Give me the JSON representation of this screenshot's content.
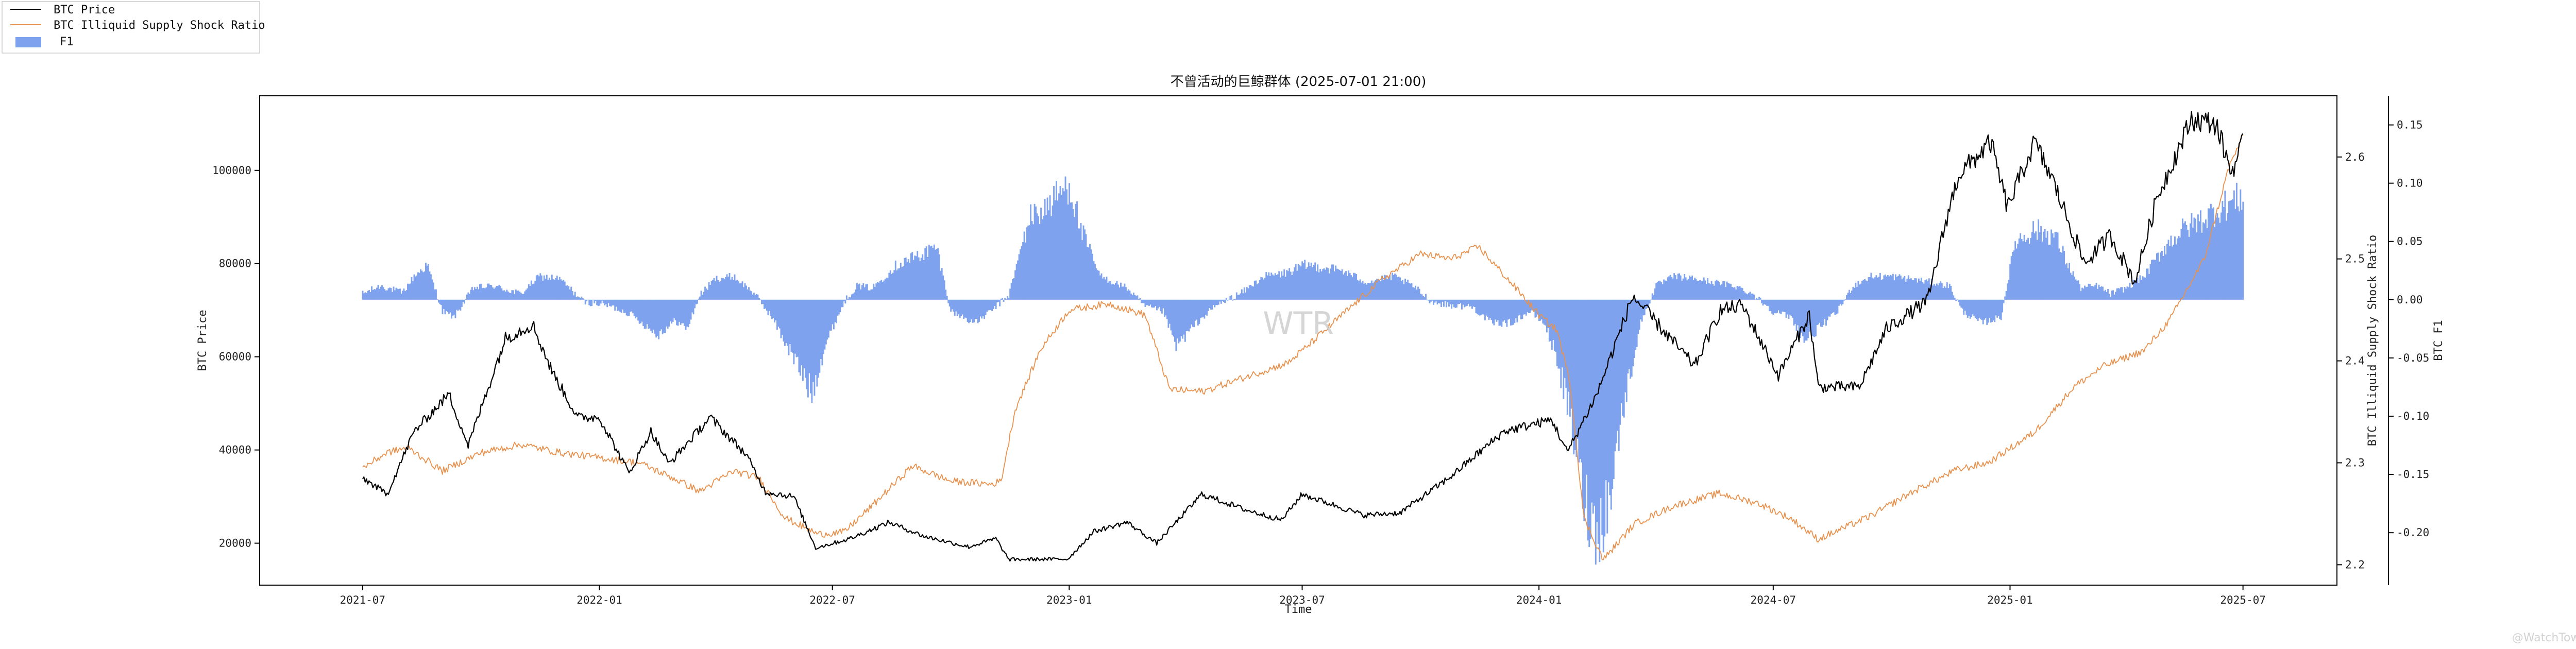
{
  "chart_data": {
    "type": "line",
    "title": "不曾活动的巨鲸群体 (2025-07-01 21:00)",
    "xlabel": "Time",
    "ylabels": {
      "left": "BTC Price",
      "right1": "BTC Illiquid Supply Shock Ratio",
      "right2": "BTC F1"
    },
    "x_ticks": [
      "2021-07",
      "2022-01",
      "2022-07",
      "2023-01",
      "2023-07",
      "2024-01",
      "2024-07",
      "2025-01",
      "2025-07"
    ],
    "x_tick_dates": [
      "2021-07-01",
      "2022-01-01",
      "2022-07-01",
      "2023-01-01",
      "2023-07-01",
      "2024-01-01",
      "2024-07-01",
      "2025-01-01",
      "2025-07-01"
    ],
    "xlim": [
      "2021-04-12",
      "2025-09-12"
    ],
    "y_left": {
      "ticks": [
        "20000",
        "40000",
        "60000",
        "80000",
        "100000"
      ],
      "tick_values": [
        20000,
        40000,
        60000,
        80000,
        100000
      ],
      "lim": [
        11000,
        116000
      ]
    },
    "y_right1": {
      "ticks": [
        "2.2",
        "2.3",
        "2.4",
        "2.5",
        "2.6"
      ],
      "tick_values": [
        2.2,
        2.3,
        2.4,
        2.5,
        2.6
      ],
      "lim": [
        2.18,
        2.66
      ]
    },
    "y_right2": {
      "ticks": [
        "-0.20",
        "-0.15",
        "-0.10",
        "-0.05",
        "0.00",
        "0.05",
        "0.10",
        "0.15"
      ],
      "tick_values": [
        -0.2,
        -0.15,
        -0.1,
        -0.05,
        0.0,
        0.05,
        0.1,
        0.15
      ],
      "lim": [
        -0.245,
        0.175
      ]
    },
    "legend_position": "top-left, outside plot",
    "watermark": "WTR",
    "corner_mark": "@WatchTower",
    "series": [
      {
        "name": "BTC Price",
        "axis": "left",
        "color": "#000000",
        "points": [
          [
            "2021-07-01",
            34000
          ],
          [
            "2021-07-20",
            30500
          ],
          [
            "2021-08-10",
            44000
          ],
          [
            "2021-09-06",
            52000
          ],
          [
            "2021-09-21",
            41000
          ],
          [
            "2021-10-20",
            64000
          ],
          [
            "2021-11-10",
            67000
          ],
          [
            "2021-11-25",
            57000
          ],
          [
            "2021-12-15",
            47000
          ],
          [
            "2022-01-01",
            47000
          ],
          [
            "2022-01-24",
            35000
          ],
          [
            "2022-02-10",
            44000
          ],
          [
            "2022-02-24",
            37000
          ],
          [
            "2022-03-28",
            47000
          ],
          [
            "2022-04-25",
            39000
          ],
          [
            "2022-05-10",
            31000
          ],
          [
            "2022-06-01",
            30000
          ],
          [
            "2022-06-18",
            19000
          ],
          [
            "2022-07-15",
            21000
          ],
          [
            "2022-08-14",
            24500
          ],
          [
            "2022-09-10",
            21500
          ],
          [
            "2022-10-15",
            19200
          ],
          [
            "2022-11-05",
            21000
          ],
          [
            "2022-11-15",
            16500
          ],
          [
            "2022-12-31",
            16600
          ],
          [
            "2023-01-20",
            22500
          ],
          [
            "2023-02-15",
            24500
          ],
          [
            "2023-03-10",
            20000
          ],
          [
            "2023-04-14",
            30500
          ],
          [
            "2023-05-20",
            27000
          ],
          [
            "2023-06-15",
            25000
          ],
          [
            "2023-07-01",
            30500
          ],
          [
            "2023-08-18",
            26000
          ],
          [
            "2023-09-15",
            26500
          ],
          [
            "2023-10-23",
            34000
          ],
          [
            "2023-12-05",
            44000
          ],
          [
            "2024-01-11",
            46500
          ],
          [
            "2024-01-23",
            39500
          ],
          [
            "2024-02-15",
            52000
          ],
          [
            "2024-03-14",
            73000
          ],
          [
            "2024-04-15",
            63000
          ],
          [
            "2024-05-01",
            58000
          ],
          [
            "2024-05-21",
            70000
          ],
          [
            "2024-06-07",
            71000
          ],
          [
            "2024-07-05",
            56000
          ],
          [
            "2024-07-29",
            69000
          ],
          [
            "2024-08-05",
            53500
          ],
          [
            "2024-09-06",
            53500
          ],
          [
            "2024-09-27",
            66000
          ],
          [
            "2024-10-29",
            72000
          ],
          [
            "2024-11-13",
            90000
          ],
          [
            "2024-11-22",
            99000
          ],
          [
            "2024-12-17",
            106000
          ],
          [
            "2024-12-30",
            92000
          ],
          [
            "2025-01-20",
            106000
          ],
          [
            "2025-02-03",
            98000
          ],
          [
            "2025-02-28",
            80000
          ],
          [
            "2025-03-20",
            86000
          ],
          [
            "2025-04-08",
            76000
          ],
          [
            "2025-04-25",
            94000
          ],
          [
            "2025-05-22",
            111000
          ],
          [
            "2025-06-10",
            110000
          ],
          [
            "2025-06-22",
            99500
          ],
          [
            "2025-07-01",
            106000
          ]
        ]
      },
      {
        "name": "BTC Illiquid Supply Shock Ratio",
        "axis": "right1",
        "color": "#e8924f",
        "points": [
          [
            "2021-07-01",
            2.295
          ],
          [
            "2021-07-20",
            2.31
          ],
          [
            "2021-08-05",
            2.315
          ],
          [
            "2021-09-01",
            2.292
          ],
          [
            "2021-10-01",
            2.31
          ],
          [
            "2021-11-01",
            2.318
          ],
          [
            "2021-12-01",
            2.31
          ],
          [
            "2022-01-01",
            2.305
          ],
          [
            "2022-02-01",
            2.3
          ],
          [
            "2022-03-01",
            2.284
          ],
          [
            "2022-03-20",
            2.272
          ],
          [
            "2022-04-15",
            2.292
          ],
          [
            "2022-05-05",
            2.285
          ],
          [
            "2022-05-25",
            2.246
          ],
          [
            "2022-06-20",
            2.23
          ],
          [
            "2022-07-10",
            2.232
          ],
          [
            "2022-08-01",
            2.258
          ],
          [
            "2022-09-01",
            2.297
          ],
          [
            "2022-10-01",
            2.282
          ],
          [
            "2022-11-01",
            2.279
          ],
          [
            "2022-11-09",
            2.282
          ],
          [
            "2022-11-20",
            2.352
          ],
          [
            "2022-12-10",
            2.412
          ],
          [
            "2023-01-01",
            2.45
          ],
          [
            "2023-02-01",
            2.456
          ],
          [
            "2023-03-01",
            2.445
          ],
          [
            "2023-03-20",
            2.372
          ],
          [
            "2023-04-15",
            2.37
          ],
          [
            "2023-05-20",
            2.385
          ],
          [
            "2023-06-20",
            2.398
          ],
          [
            "2023-07-10",
            2.42
          ],
          [
            "2023-08-01",
            2.445
          ],
          [
            "2023-09-01",
            2.48
          ],
          [
            "2023-10-01",
            2.505
          ],
          [
            "2023-10-25",
            2.5
          ],
          [
            "2023-11-15",
            2.512
          ],
          [
            "2023-12-15",
            2.47
          ],
          [
            "2024-01-01",
            2.445
          ],
          [
            "2024-01-15",
            2.43
          ],
          [
            "2024-01-25",
            2.38
          ],
          [
            "2024-02-05",
            2.245
          ],
          [
            "2024-02-20",
            2.205
          ],
          [
            "2024-03-15",
            2.24
          ],
          [
            "2024-04-15",
            2.258
          ],
          [
            "2024-05-20",
            2.27
          ],
          [
            "2024-06-20",
            2.26
          ],
          [
            "2024-07-15",
            2.245
          ],
          [
            "2024-08-05",
            2.225
          ],
          [
            "2024-09-15",
            2.248
          ],
          [
            "2024-10-15",
            2.27
          ],
          [
            "2024-11-20",
            2.293
          ],
          [
            "2024-12-15",
            2.3
          ],
          [
            "2025-01-20",
            2.33
          ],
          [
            "2025-02-20",
            2.375
          ],
          [
            "2025-03-15",
            2.395
          ],
          [
            "2025-04-15",
            2.41
          ],
          [
            "2025-05-05",
            2.44
          ],
          [
            "2025-06-01",
            2.5
          ],
          [
            "2025-06-20",
            2.59
          ],
          [
            "2025-07-01",
            2.62
          ]
        ]
      },
      {
        "name": "F1",
        "axis": "right2",
        "color": "#7ea2ee",
        "points": [
          [
            "2021-07-01",
            0.005
          ],
          [
            "2021-07-15",
            0.012
          ],
          [
            "2021-08-01",
            0.006
          ],
          [
            "2021-08-10",
            0.02
          ],
          [
            "2021-08-20",
            0.03
          ],
          [
            "2021-09-01",
            -0.01
          ],
          [
            "2021-09-10",
            -0.015
          ],
          [
            "2021-09-25",
            0.01
          ],
          [
            "2021-10-10",
            0.012
          ],
          [
            "2021-11-01",
            0.005
          ],
          [
            "2021-11-15",
            0.02
          ],
          [
            "2021-12-01",
            0.018
          ],
          [
            "2021-12-20",
            -0.002
          ],
          [
            "2022-01-05",
            -0.004
          ],
          [
            "2022-01-25",
            -0.012
          ],
          [
            "2022-02-15",
            -0.03
          ],
          [
            "2022-03-01",
            -0.018
          ],
          [
            "2022-03-10",
            -0.025
          ],
          [
            "2022-03-20",
            0.004
          ],
          [
            "2022-04-01",
            0.018
          ],
          [
            "2022-04-15",
            0.02
          ],
          [
            "2022-05-01",
            0.006
          ],
          [
            "2022-05-15",
            -0.015
          ],
          [
            "2022-06-01",
            -0.05
          ],
          [
            "2022-06-15",
            -0.08
          ],
          [
            "2022-06-25",
            -0.04
          ],
          [
            "2022-07-10",
            -0.002
          ],
          [
            "2022-07-20",
            0.012
          ],
          [
            "2022-08-01",
            0.01
          ],
          [
            "2022-08-20",
            0.03
          ],
          [
            "2022-09-10",
            0.04
          ],
          [
            "2022-09-20",
            0.045
          ],
          [
            "2022-10-01",
            -0.01
          ],
          [
            "2022-10-20",
            -0.02
          ],
          [
            "2022-11-01",
            -0.01
          ],
          [
            "2022-11-15",
            0.004
          ],
          [
            "2022-12-01",
            0.07
          ],
          [
            "2022-12-15",
            0.08
          ],
          [
            "2023-01-01",
            0.1
          ],
          [
            "2023-01-10",
            0.06
          ],
          [
            "2023-01-25",
            0.02
          ],
          [
            "2023-02-15",
            0.01
          ],
          [
            "2023-03-01",
            -0.006
          ],
          [
            "2023-03-15",
            -0.01
          ],
          [
            "2023-03-25",
            -0.04
          ],
          [
            "2023-04-10",
            -0.02
          ],
          [
            "2023-04-25",
            -0.005
          ],
          [
            "2023-05-15",
            0.006
          ],
          [
            "2023-06-01",
            0.02
          ],
          [
            "2023-06-15",
            0.022
          ],
          [
            "2023-07-05",
            0.03
          ],
          [
            "2023-08-01",
            0.025
          ],
          [
            "2023-08-20",
            0.015
          ],
          [
            "2023-09-10",
            0.02
          ],
          [
            "2023-09-25",
            0.012
          ],
          [
            "2023-10-10",
            -0.002
          ],
          [
            "2023-10-25",
            -0.005
          ],
          [
            "2023-11-10",
            -0.006
          ],
          [
            "2023-11-25",
            -0.02
          ],
          [
            "2023-12-10",
            -0.02
          ],
          [
            "2023-12-25",
            -0.01
          ],
          [
            "2024-01-05",
            -0.02
          ],
          [
            "2024-01-15",
            -0.05
          ],
          [
            "2024-01-25",
            -0.1
          ],
          [
            "2024-02-05",
            -0.17
          ],
          [
            "2024-02-15",
            -0.2
          ],
          [
            "2024-02-25",
            -0.17
          ],
          [
            "2024-03-05",
            -0.1
          ],
          [
            "2024-03-20",
            -0.02
          ],
          [
            "2024-04-01",
            0.012
          ],
          [
            "2024-04-15",
            0.02
          ],
          [
            "2024-05-01",
            0.018
          ],
          [
            "2024-05-15",
            0.015
          ],
          [
            "2024-06-01",
            0.012
          ],
          [
            "2024-06-15",
            0.005
          ],
          [
            "2024-07-01",
            -0.01
          ],
          [
            "2024-07-15",
            -0.015
          ],
          [
            "2024-07-25",
            -0.035
          ],
          [
            "2024-08-05",
            -0.025
          ],
          [
            "2024-08-20",
            -0.01
          ],
          [
            "2024-09-01",
            0.012
          ],
          [
            "2024-09-15",
            0.02
          ],
          [
            "2024-10-01",
            0.02
          ],
          [
            "2024-10-15",
            0.018
          ],
          [
            "2024-11-01",
            0.015
          ],
          [
            "2024-11-15",
            0.012
          ],
          [
            "2024-11-25",
            -0.01
          ],
          [
            "2024-12-10",
            -0.02
          ],
          [
            "2024-12-25",
            -0.015
          ],
          [
            "2025-01-05",
            0.05
          ],
          [
            "2025-01-20",
            0.06
          ],
          [
            "2025-02-05",
            0.055
          ],
          [
            "2025-02-15",
            0.03
          ],
          [
            "2025-02-25",
            0.01
          ],
          [
            "2025-03-10",
            0.012
          ],
          [
            "2025-03-20",
            0.005
          ],
          [
            "2025-04-01",
            0.01
          ],
          [
            "2025-04-15",
            0.02
          ],
          [
            "2025-05-01",
            0.045
          ],
          [
            "2025-05-15",
            0.06
          ],
          [
            "2025-06-01",
            0.07
          ],
          [
            "2025-06-15",
            0.08
          ],
          [
            "2025-06-25",
            0.085
          ],
          [
            "2025-07-01",
            0.09
          ]
        ]
      }
    ]
  }
}
